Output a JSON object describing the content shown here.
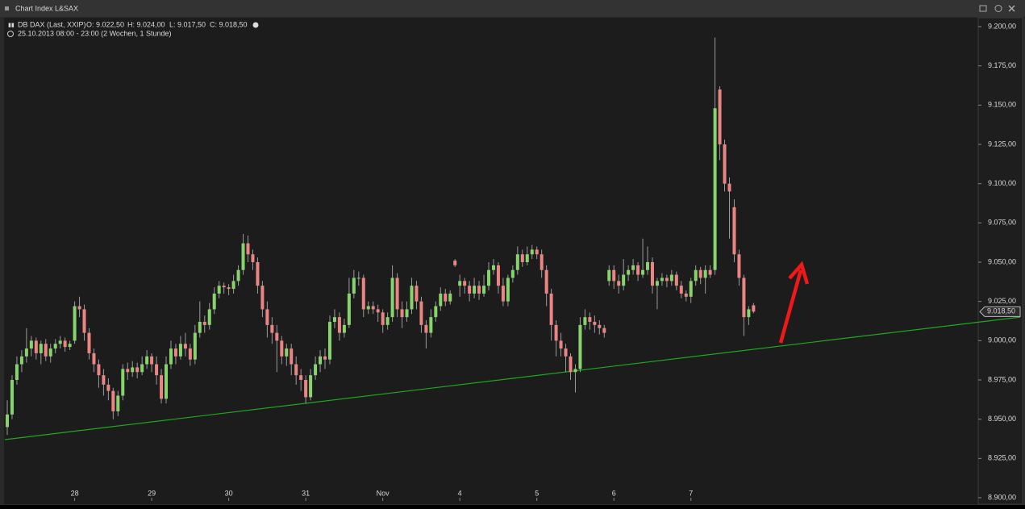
{
  "window_title": "Chart Index L&SAX",
  "chart_data": {
    "type": "candlestick",
    "instrument": "DB DAX (Last, XXIP)",
    "ohlc_labels": [
      "O: 9.022,50",
      "H: 9.024,00",
      "L: 9.017,50",
      "C: 9.018,50"
    ],
    "period": "25.10.2013 08:00 - 23:00 (2 Wochen, 1 Stunde)",
    "up_color": "#86d46b",
    "down_color": "#ea8583",
    "wick_color": "#9a9a9a",
    "ylim": [
      8900,
      9200
    ],
    "yticks": [
      {
        "value": 8900,
        "label": "8.900,00"
      },
      {
        "value": 8925,
        "label": "8.925,00"
      },
      {
        "value": 8950,
        "label": "8.950,00"
      },
      {
        "value": 8975,
        "label": "8.975,00"
      },
      {
        "value": 9000,
        "label": "9.000,00"
      },
      {
        "value": 9025,
        "label": "9.025,00"
      },
      {
        "value": 9050,
        "label": "9.050,00"
      },
      {
        "value": 9075,
        "label": "9.075,00"
      },
      {
        "value": 9100,
        "label": "9.100,00"
      },
      {
        "value": 9125,
        "label": "9.125,00"
      },
      {
        "value": 9150,
        "label": "9.150,00"
      },
      {
        "value": 9175,
        "label": "9.175,00"
      },
      {
        "value": 9200,
        "label": "9.200,00"
      }
    ],
    "last_price": {
      "value": 9018.5,
      "label": "9.018,50"
    },
    "trendline": {
      "color": "#1fa81f",
      "values": [
        8937,
        9015
      ]
    },
    "categories": [
      null,
      null,
      null,
      null,
      null,
      null,
      null,
      null,
      null,
      null,
      null,
      null,
      null,
      null,
      "28",
      null,
      null,
      null,
      null,
      null,
      null,
      null,
      null,
      null,
      null,
      null,
      null,
      null,
      null,
      null,
      "29",
      null,
      null,
      null,
      null,
      null,
      null,
      null,
      null,
      null,
      null,
      null,
      null,
      null,
      null,
      null,
      "30",
      null,
      null,
      null,
      null,
      null,
      null,
      null,
      null,
      null,
      null,
      null,
      null,
      null,
      null,
      null,
      "31",
      null,
      null,
      null,
      null,
      null,
      null,
      null,
      null,
      null,
      null,
      null,
      null,
      null,
      null,
      null,
      "Nov",
      null,
      null,
      null,
      null,
      null,
      null,
      null,
      null,
      null,
      null,
      null,
      null,
      null,
      null,
      null,
      "4",
      null,
      null,
      null,
      null,
      null,
      null,
      null,
      null,
      null,
      null,
      null,
      null,
      null,
      null,
      null,
      "5",
      null,
      null,
      null,
      null,
      null,
      null,
      null,
      null,
      null,
      null,
      null,
      null,
      null,
      null,
      null,
      "6",
      null,
      null,
      null,
      null,
      null,
      null,
      null,
      null,
      null,
      null,
      null,
      null,
      null,
      null,
      null,
      "7",
      null,
      null,
      null,
      null,
      null,
      null,
      null,
      null,
      null,
      null,
      null,
      null,
      null
    ],
    "candles": [
      [
        8945,
        8962,
        8940,
        8953
      ],
      [
        8953,
        8978,
        8950,
        8975
      ],
      [
        8975,
        8990,
        8972,
        8985
      ],
      [
        8985,
        8994,
        8980,
        8990
      ],
      [
        8990,
        9008,
        8986,
        8995
      ],
      [
        8995,
        9003,
        8990,
        9000
      ],
      [
        9000,
        9002,
        8988,
        8992
      ],
      [
        8992,
        9000,
        8985,
        8998
      ],
      [
        8998,
        9001,
        8987,
        8990
      ],
      [
        8990,
        8998,
        8986,
        8995
      ],
      [
        8995,
        9001,
        8992,
        8998
      ],
      [
        8998,
        9003,
        8995,
        9000
      ],
      [
        9000,
        9002,
        8993,
        8996
      ],
      [
        8996,
        9000,
        8994,
        8998
      ],
      [
        9000,
        9025,
        8998,
        9022
      ],
      [
        9022,
        9028,
        9015,
        9020
      ],
      [
        9020,
        9023,
        9000,
        9005
      ],
      [
        9005,
        9008,
        8988,
        8992
      ],
      [
        8992,
        8995,
        8980,
        8985
      ],
      [
        8985,
        8988,
        8970,
        8978
      ],
      [
        8978,
        8982,
        8965,
        8972
      ],
      [
        8972,
        8976,
        8962,
        8968
      ],
      [
        8968,
        8970,
        8950,
        8955
      ],
      [
        8955,
        8968,
        8952,
        8965
      ],
      [
        8965,
        8985,
        8962,
        8982
      ],
      [
        8982,
        8986,
        8975,
        8980
      ],
      [
        8980,
        8987,
        8977,
        8983
      ],
      [
        8983,
        8986,
        8976,
        8980
      ],
      [
        8980,
        8990,
        8978,
        8985
      ],
      [
        8985,
        8994,
        8982,
        8990
      ],
      [
        8990,
        8992,
        8980,
        8985
      ],
      [
        8985,
        8990,
        8972,
        8978
      ],
      [
        8978,
        8982,
        8960,
        8963
      ],
      [
        8963,
        8990,
        8960,
        8985
      ],
      [
        8985,
        9000,
        8982,
        8995
      ],
      [
        8995,
        8998,
        8985,
        8990
      ],
      [
        8990,
        9003,
        8988,
        8998
      ],
      [
        8998,
        9005,
        8990,
        8995
      ],
      [
        8995,
        8998,
        8984,
        8988
      ],
      [
        8988,
        9010,
        8985,
        9005
      ],
      [
        9005,
        9025,
        9002,
        9012
      ],
      [
        9012,
        9016,
        9005,
        9010
      ],
      [
        9010,
        9024,
        9007,
        9020
      ],
      [
        9020,
        9034,
        9017,
        9030
      ],
      [
        9030,
        9038,
        9027,
        9035
      ],
      [
        9035,
        9037,
        9030,
        9034
      ],
      [
        9034,
        9036,
        9029,
        9033
      ],
      [
        9033,
        9042,
        9030,
        9038
      ],
      [
        9038,
        9048,
        9035,
        9045
      ],
      [
        9045,
        9068,
        9042,
        9062
      ],
      [
        9062,
        9067,
        9050,
        9055
      ],
      [
        9055,
        9058,
        9045,
        9050
      ],
      [
        9050,
        9053,
        9030,
        9035
      ],
      [
        9035,
        9038,
        9015,
        9020
      ],
      [
        9020,
        9025,
        9002,
        9010
      ],
      [
        9010,
        9015,
        8998,
        9005
      ],
      [
        9005,
        9010,
        8980,
        9000
      ],
      [
        9000,
        9003,
        8985,
        8990
      ],
      [
        8990,
        8998,
        8984,
        8995
      ],
      [
        8995,
        8998,
        8978,
        8985
      ],
      [
        8985,
        8990,
        8972,
        8978
      ],
      [
        8978,
        8982,
        8968,
        8975
      ],
      [
        8975,
        8978,
        8960,
        8964
      ],
      [
        8964,
        8982,
        8962,
        8978
      ],
      [
        8978,
        8990,
        8975,
        8985
      ],
      [
        8985,
        8994,
        8980,
        8990
      ],
      [
        8990,
        8995,
        8982,
        8988
      ],
      [
        8988,
        9016,
        8985,
        9012
      ],
      [
        9012,
        9020,
        9008,
        9015
      ],
      [
        9015,
        9018,
        9000,
        9005
      ],
      [
        9005,
        9014,
        9002,
        9010
      ],
      [
        9010,
        9040,
        9008,
        9030
      ],
      [
        9030,
        9045,
        9027,
        9040
      ],
      [
        9040,
        9044,
        9035,
        9040
      ],
      [
        9040,
        9042,
        9015,
        9020
      ],
      [
        9020,
        9025,
        9017,
        9022
      ],
      [
        9022,
        9025,
        9017,
        9020
      ],
      [
        9020,
        9023,
        9012,
        9018
      ],
      [
        9018,
        9020,
        9005,
        9010
      ],
      [
        9010,
        9018,
        9007,
        9015
      ],
      [
        9015,
        9048,
        9012,
        9040
      ],
      [
        9040,
        9043,
        9015,
        9020
      ],
      [
        9020,
        9025,
        9008,
        9015
      ],
      [
        9015,
        9025,
        9012,
        9020
      ],
      [
        9020,
        9040,
        9017,
        9035
      ],
      [
        9035,
        9038,
        9020,
        9025
      ],
      [
        9025,
        9028,
        9005,
        9010
      ],
      [
        9010,
        9013,
        8995,
        9005
      ],
      [
        9005,
        9020,
        9002,
        9015
      ],
      [
        9015,
        9025,
        9012,
        9022
      ],
      [
        9022,
        9034,
        9019,
        9030
      ],
      [
        9030,
        9033,
        9022,
        9025
      ],
      [
        9025,
        9032,
        9023,
        9030
      ],
      [
        9051,
        9052,
        9047,
        9048
      ],
      [
        9035,
        9042,
        9028,
        9038
      ],
      [
        9038,
        9040,
        9030,
        9035
      ],
      [
        9035,
        9038,
        9025,
        9030
      ],
      [
        9030,
        9040,
        9027,
        9035
      ],
      [
        9035,
        9038,
        9026,
        9030
      ],
      [
        9030,
        9042,
        9028,
        9035
      ],
      [
        9035,
        9050,
        9032,
        9045
      ],
      [
        9045,
        9052,
        9042,
        9048
      ],
      [
        9048,
        9050,
        9030,
        9035
      ],
      [
        9035,
        9040,
        9022,
        9025
      ],
      [
        9025,
        9042,
        9022,
        9040
      ],
      [
        9040,
        9048,
        9037,
        9045
      ],
      [
        9045,
        9060,
        9042,
        9055
      ],
      [
        9055,
        9058,
        9047,
        9050
      ],
      [
        9050,
        9060,
        9048,
        9055
      ],
      [
        9055,
        9061,
        9052,
        9058
      ],
      [
        9058,
        9060,
        9052,
        9055
      ],
      [
        9055,
        9058,
        9040,
        9045
      ],
      [
        9045,
        9048,
        9022,
        9030
      ],
      [
        9030,
        9033,
        9000,
        9010
      ],
      [
        9010,
        9013,
        8990,
        9000
      ],
      [
        9000,
        9005,
        8990,
        8995
      ],
      [
        8995,
        8998,
        8980,
        8990
      ],
      [
        8990,
        8992,
        8975,
        8980
      ],
      [
        8980,
        8985,
        8967,
        8982
      ],
      [
        8982,
        9015,
        8980,
        9010
      ],
      [
        9010,
        9020,
        9007,
        9015
      ],
      [
        9015,
        9018,
        9007,
        9012
      ],
      [
        9012,
        9016,
        9005,
        9010
      ],
      [
        9010,
        9013,
        9004,
        9008
      ],
      [
        9008,
        9010,
        9002,
        9005
      ],
      [
        9038,
        9048,
        9035,
        9045
      ],
      [
        9045,
        9048,
        9033,
        9038
      ],
      [
        9038,
        9042,
        9030,
        9035
      ],
      [
        9035,
        9052,
        9032,
        9042
      ],
      [
        9042,
        9048,
        9038,
        9045
      ],
      [
        9045,
        9052,
        9042,
        9048
      ],
      [
        9048,
        9050,
        9038,
        9042
      ],
      [
        9042,
        9065,
        9040,
        9045
      ],
      [
        9045,
        9060,
        9042,
        9050
      ],
      [
        9050,
        9053,
        9030,
        9035
      ],
      [
        9035,
        9040,
        9020,
        9038
      ],
      [
        9038,
        9043,
        9035,
        9040
      ],
      [
        9040,
        9042,
        9034,
        9038
      ],
      [
        9038,
        9045,
        9035,
        9042
      ],
      [
        9042,
        9044,
        9032,
        9035
      ],
      [
        9035,
        9038,
        9027,
        9030
      ],
      [
        9030,
        9032,
        9025,
        9028
      ],
      [
        9028,
        9040,
        9024,
        9038
      ],
      [
        9038,
        9048,
        9035,
        9045
      ],
      [
        9045,
        9047,
        9036,
        9040
      ],
      [
        9040,
        9048,
        9030,
        9045
      ],
      [
        9045,
        9048,
        9040,
        9042
      ],
      [
        9045,
        9193,
        9042,
        9148
      ],
      [
        9160,
        9162,
        9115,
        9125
      ],
      [
        9125,
        9128,
        9095,
        9100
      ],
      [
        9100,
        9104,
        9065,
        9095
      ],
      [
        9085,
        9090,
        9050,
        9055
      ],
      [
        9055,
        9058,
        9035,
        9040
      ],
      [
        9040,
        9042,
        9003,
        9015
      ],
      [
        9015,
        9022,
        9010,
        9020
      ],
      [
        9022.5,
        9024,
        9017.5,
        9018.5
      ]
    ]
  }
}
